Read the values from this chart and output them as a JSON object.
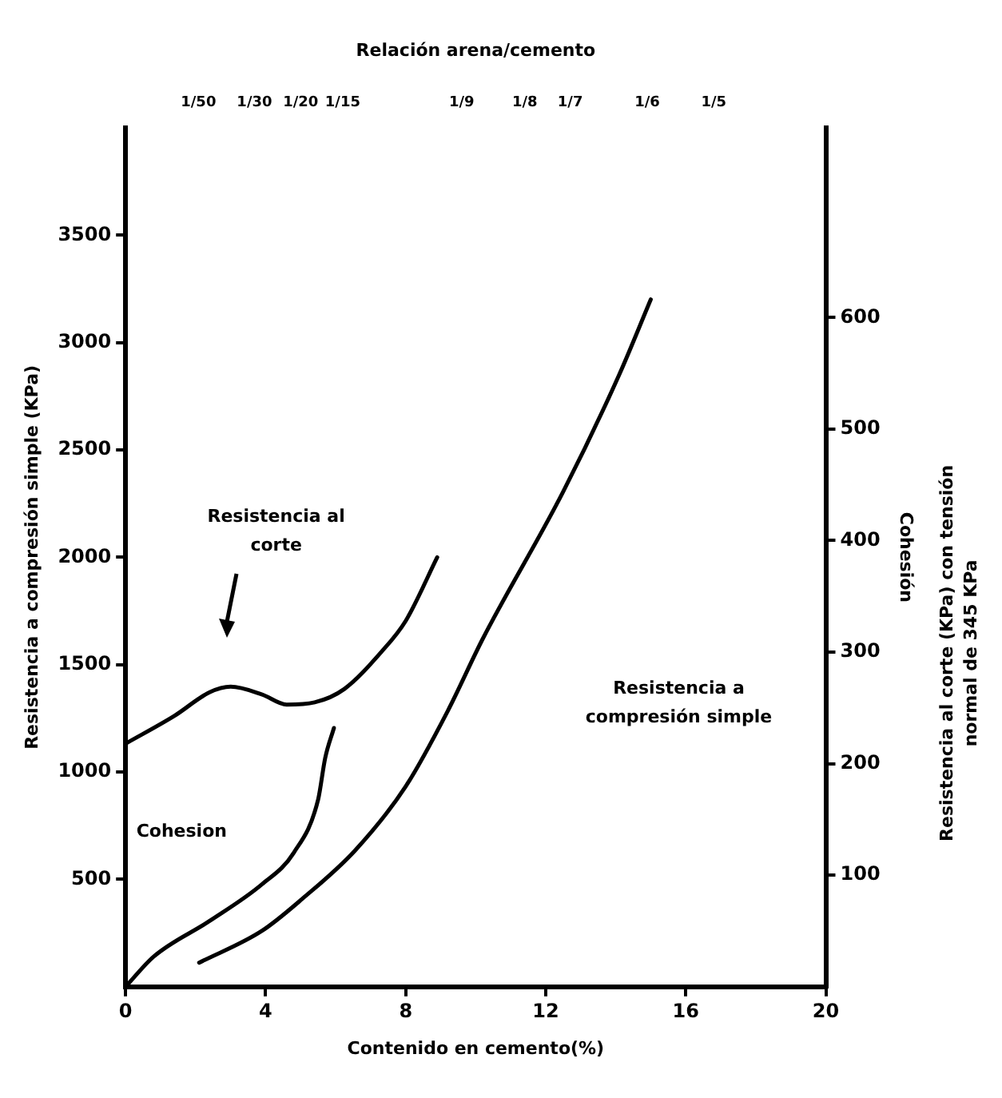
{
  "chart_data": {
    "type": "line",
    "xlabel": "Contenido en cemento(%)",
    "ylabel": "Resistencia a compresión simple (KPa)",
    "y2label": "Cohesión",
    "x2label": "Relación arena/cemento",
    "xlim": [
      0,
      20
    ],
    "xticks": [
      0,
      4,
      8,
      12,
      16,
      20
    ],
    "ylim": [
      0,
      4000
    ],
    "yticks": [
      500,
      1000,
      1500,
      2000,
      2500,
      3000,
      3500
    ],
    "y2lim": [
      0,
      770
    ],
    "y2ticks": [
      100,
      200,
      300,
      400,
      500,
      600
    ],
    "grid": false,
    "legend": false,
    "marker": "none",
    "line_style": "solid",
    "series": [
      {
        "color": "#000000",
        "axis": "y2",
        "x": [
          0,
          1.4,
          2.4,
          3.0,
          3.9,
          4.6,
          5.4,
          6.25,
          7.3,
          8.0,
          8.9
        ],
        "values": [
          218,
          243,
          264,
          269,
          262,
          253,
          255,
          267,
          300,
          328,
          385
        ]
      },
      {
        "color": "#000000",
        "axis": "y2",
        "x": [
          0,
          0.8,
          2.4,
          3.9,
          4.8,
          5.5,
          5.7,
          5.95
        ],
        "values": [
          0,
          27,
          59,
          92,
          120,
          168,
          205,
          232
        ]
      },
      {
        "color": "#000000",
        "axis": "y",
        "x": [
          2.1,
          3.9,
          5.05,
          6.55,
          8.0,
          9.2,
          10.2,
          12.5,
          14.1,
          15.0
        ],
        "values": [
          112,
          261,
          410,
          634,
          933,
          1284,
          1620,
          2306,
          2851,
          3201
        ]
      }
    ],
    "annotations": [
      "1/50",
      "1/30",
      "1/20",
      "1/15",
      "1/9",
      "1/8",
      "1/7",
      "1/6",
      "1/5",
      "Resistencia al corte",
      "Cohesion",
      "Resistencia a compresión simple",
      "Resistencia al corte (KPa) con tensión normal de 345 KPa"
    ]
  }
}
